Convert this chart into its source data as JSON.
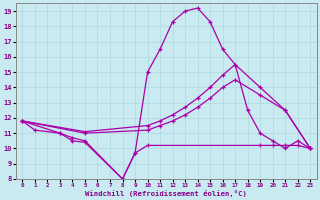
{
  "background_color": "#c8eaf0",
  "grid_color": "#b0d8e0",
  "line_color": "#aa00aa",
  "xlim": [
    -0.5,
    23.5
  ],
  "ylim": [
    8,
    19.5
  ],
  "xlabel": "Windchill (Refroidissement éolien,°C)",
  "xticks": [
    0,
    1,
    2,
    3,
    4,
    5,
    6,
    7,
    8,
    9,
    10,
    11,
    12,
    13,
    14,
    15,
    16,
    17,
    18,
    19,
    20,
    21,
    22,
    23
  ],
  "yticks": [
    8,
    9,
    10,
    11,
    12,
    13,
    14,
    15,
    16,
    17,
    18,
    19
  ],
  "series": [
    {
      "x": [
        0,
        1,
        3,
        4,
        5,
        8,
        9,
        10,
        11,
        12,
        13,
        14,
        15,
        16,
        17,
        18,
        19,
        20,
        21,
        22,
        23
      ],
      "y": [
        11.8,
        11.2,
        11.0,
        10.7,
        10.5,
        8.0,
        9.7,
        15.0,
        16.5,
        18.3,
        19.0,
        19.2,
        18.3,
        16.5,
        15.5,
        12.5,
        11.0,
        10.5,
        10.0,
        10.5,
        10.0
      ]
    },
    {
      "x": [
        0,
        5,
        10,
        11,
        12,
        13,
        14,
        15,
        16,
        17,
        19,
        21,
        23
      ],
      "y": [
        11.8,
        11.1,
        11.5,
        11.8,
        12.2,
        12.7,
        13.3,
        14.0,
        14.8,
        15.5,
        14.0,
        12.5,
        10.0
      ]
    },
    {
      "x": [
        0,
        5,
        10,
        11,
        12,
        13,
        14,
        15,
        16,
        17,
        19,
        21,
        23
      ],
      "y": [
        11.8,
        11.0,
        11.2,
        11.5,
        11.8,
        12.2,
        12.7,
        13.3,
        14.0,
        14.5,
        13.5,
        12.5,
        10.0
      ]
    },
    {
      "x": [
        0,
        3,
        4,
        5,
        8,
        9,
        10,
        19,
        20,
        21,
        22,
        23
      ],
      "y": [
        11.8,
        11.0,
        10.5,
        10.4,
        8.0,
        9.7,
        10.2,
        10.2,
        10.2,
        10.2,
        10.2,
        10.0
      ]
    }
  ]
}
